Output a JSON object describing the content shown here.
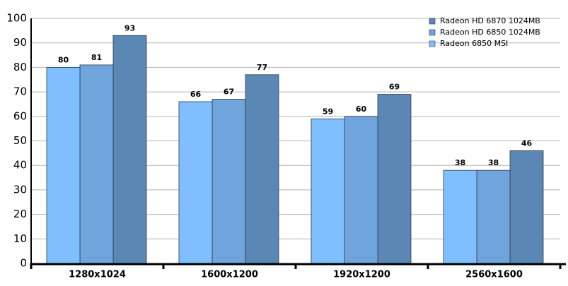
{
  "chart_data": {
    "type": "bar",
    "categories": [
      "1280x1024",
      "1600x1200",
      "1920x1200",
      "2560x1600"
    ],
    "series": [
      {
        "name": "Radeon HD 6870 1024MB",
        "color": "#5b87b5",
        "values": [
          93,
          77,
          69,
          46
        ]
      },
      {
        "name": "Radeon HD 6850 1024MB",
        "color": "#6fa5dc",
        "values": [
          81,
          67,
          60,
          38
        ]
      },
      {
        "name": "Radeon 6850 MSI",
        "color": "#80bfff",
        "values": [
          80,
          66,
          59,
          38
        ]
      }
    ],
    "ylim": [
      0,
      100
    ],
    "yticks": [
      0,
      10,
      20,
      30,
      40,
      50,
      60,
      70,
      80,
      90,
      100
    ],
    "grid": true,
    "legend": "top-right"
  }
}
